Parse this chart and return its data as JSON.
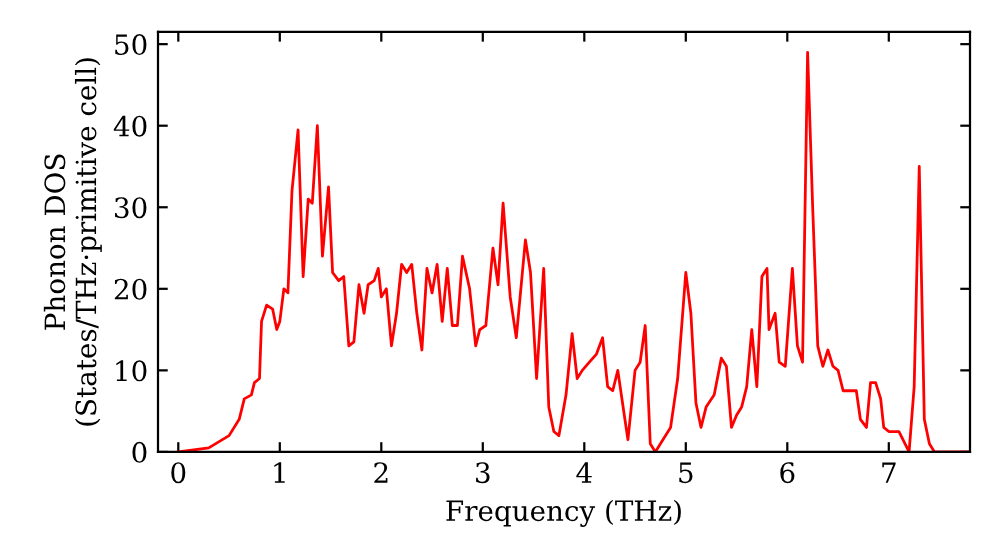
{
  "chart_data": {
    "type": "line",
    "xlabel": "Frequency (THz)",
    "ylabel": "Phonon DOS\n(States/THz·primitive cell)",
    "xlim": [
      -0.2,
      7.8
    ],
    "ylim": [
      0,
      51.5
    ],
    "xticks": [
      0,
      1,
      2,
      3,
      4,
      5,
      6,
      7
    ],
    "yticks": [
      0,
      10,
      20,
      30,
      40,
      50
    ],
    "grid": false,
    "series": [
      {
        "color": "#ff0000",
        "x": [
          0,
          0.3,
          0.5,
          0.6,
          0.65,
          0.72,
          0.75,
          0.8,
          0.82,
          0.87,
          0.93,
          0.97,
          1.0,
          1.04,
          1.08,
          1.12,
          1.18,
          1.23,
          1.28,
          1.32,
          1.37,
          1.42,
          1.48,
          1.52,
          1.58,
          1.63,
          1.68,
          1.73,
          1.78,
          1.83,
          1.87,
          1.93,
          1.97,
          2.0,
          2.05,
          2.1,
          2.15,
          2.2,
          2.25,
          2.3,
          2.35,
          2.4,
          2.45,
          2.5,
          2.55,
          2.6,
          2.65,
          2.7,
          2.75,
          2.8,
          2.87,
          2.93,
          2.97,
          3.03,
          3.1,
          3.15,
          3.2,
          3.27,
          3.33,
          3.42,
          3.47,
          3.53,
          3.6,
          3.65,
          3.7,
          3.75,
          3.82,
          3.88,
          3.93,
          3.98,
          4.05,
          4.12,
          4.18,
          4.23,
          4.28,
          4.33,
          4.4,
          4.43,
          4.5,
          4.55,
          4.6,
          4.65,
          4.7,
          4.75,
          4.85,
          4.92,
          5.0,
          5.05,
          5.1,
          5.15,
          5.2,
          5.28,
          5.35,
          5.4,
          5.45,
          5.5,
          5.55,
          5.6,
          5.65,
          5.7,
          5.75,
          5.8,
          5.82,
          5.88,
          5.92,
          5.98,
          6.05,
          6.1,
          6.15,
          6.2,
          6.25,
          6.3,
          6.35,
          6.4,
          6.45,
          6.5,
          6.55,
          6.6,
          6.68,
          6.72,
          6.78,
          6.82,
          6.87,
          6.92,
          6.95,
          7.0,
          7.1,
          7.2,
          7.25,
          7.3,
          7.35,
          7.4,
          7.45,
          7.8
        ],
        "values": [
          0,
          0.5,
          2,
          4,
          6.5,
          7,
          8.5,
          9,
          16,
          18,
          17.5,
          15,
          16,
          20,
          19.5,
          32,
          39.5,
          21.5,
          31,
          30.5,
          40,
          24,
          32.5,
          22,
          21,
          21.5,
          13,
          13.5,
          20.5,
          17,
          20.5,
          21,
          22.5,
          19,
          20,
          13,
          17,
          23,
          22,
          23,
          17,
          12.5,
          22.5,
          19.5,
          23,
          16,
          22.5,
          15.5,
          15.5,
          24,
          20,
          13,
          15,
          15.5,
          25,
          20.5,
          30.5,
          19,
          14,
          26,
          22,
          9,
          22.5,
          5.5,
          2.5,
          2,
          7,
          14.5,
          9,
          10,
          11,
          12,
          14,
          8,
          7.5,
          10,
          4,
          1.5,
          10,
          11,
          15.5,
          1,
          0,
          1,
          3,
          9,
          22,
          17,
          6,
          3,
          5.5,
          7,
          11.5,
          10.5,
          3,
          4.5,
          5.5,
          8,
          15,
          8,
          21.5,
          22.5,
          15,
          17,
          11,
          10.5,
          22.5,
          13,
          11,
          49,
          30,
          13,
          10.5,
          12.5,
          10.5,
          10,
          7.5,
          7.5,
          7.5,
          4,
          3,
          8.5,
          8.5,
          6.5,
          3,
          2.5,
          2.5,
          0,
          8,
          35,
          4,
          1,
          0,
          0
        ]
      }
    ]
  }
}
